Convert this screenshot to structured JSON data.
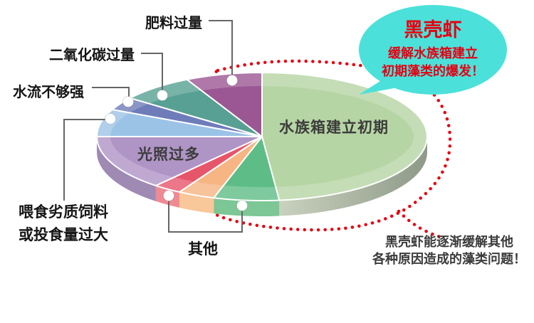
{
  "chart_data": {
    "type": "pie",
    "title": "",
    "description": "3D pie chart of causes of aquarium algae outbreaks",
    "legend": "none",
    "label_style": "callout",
    "slices": [
      {
        "key": "aquarium",
        "label": "水族箱建立初期",
        "start_angle": -90,
        "end_angle": 84,
        "percent_est": 48.3,
        "color": "#B6D5A4",
        "side_color": "gradient"
      },
      {
        "key": "other-green",
        "label": "其他",
        "start_angle": 84,
        "end_angle": 107,
        "percent_est": 6.4,
        "color": "#5EBD86",
        "side_color": "#7CC795"
      },
      {
        "key": "other-orange",
        "label": "其他",
        "start_angle": 107,
        "end_angle": 120,
        "percent_est": 3.6,
        "color": "#F6B583",
        "side_color": "#F8C79A"
      },
      {
        "key": "other-red",
        "label": "其他",
        "start_angle": 120,
        "end_angle": 130,
        "percent_est": 2.8,
        "color": "#E6566B",
        "side_color": "#EF8A94"
      },
      {
        "key": "light",
        "label": "光照过多",
        "start_angle": 130,
        "end_angle": 180,
        "percent_est": 13.9,
        "color": "#AF94C6",
        "side_color": "#9F8AB4"
      },
      {
        "key": "feeding",
        "label": "喂食劣质饲料或投食量过大",
        "start_angle": 180,
        "end_angle": 205,
        "percent_est": 6.9,
        "color": "#9BC3E6",
        "side_color": null
      },
      {
        "key": "flow",
        "label": "水流不够强",
        "start_angle": 205,
        "end_angle": 217,
        "percent_est": 3.3,
        "color": "#6E7CBA",
        "side_color": null
      },
      {
        "key": "co2",
        "label": "二氧化碳过量",
        "start_angle": 217,
        "end_angle": 243,
        "percent_est": 7.2,
        "color": "#57A093",
        "side_color": null
      },
      {
        "key": "fertilizer",
        "label": "肥料过量",
        "start_angle": 243,
        "end_angle": 270,
        "percent_est": 7.5,
        "color": "#9B5794",
        "side_color": null
      }
    ],
    "side_gradient": {
      "from": "#C9D2BE",
      "to": "#8E9A88"
    }
  },
  "labels": {
    "fertilizer": "肥料过量",
    "co2": "二氧化碳过量",
    "flow": "水流不够强",
    "feeding_line1": "喂食劣质饲料",
    "feeding_line2": "或投食量过大",
    "other": "其他",
    "aquarium": "水族箱建立初期",
    "light": "光照过多"
  },
  "bubble": {
    "title": "黑壳虾",
    "line1": "缓解水族箱建立",
    "line2": "初期藻类的爆发！",
    "bg_color": "#4BE1DA",
    "text_color": "#E60012"
  },
  "note": {
    "line1": "黑壳虾能逐渐缓解其他",
    "line2": "各种原因造成的藻类问题！",
    "color": "#3B3B3B"
  },
  "accents": {
    "dotted_outline_color": "#E60012",
    "connector_color": "#666666",
    "marker_color": "#FFFFFF"
  }
}
